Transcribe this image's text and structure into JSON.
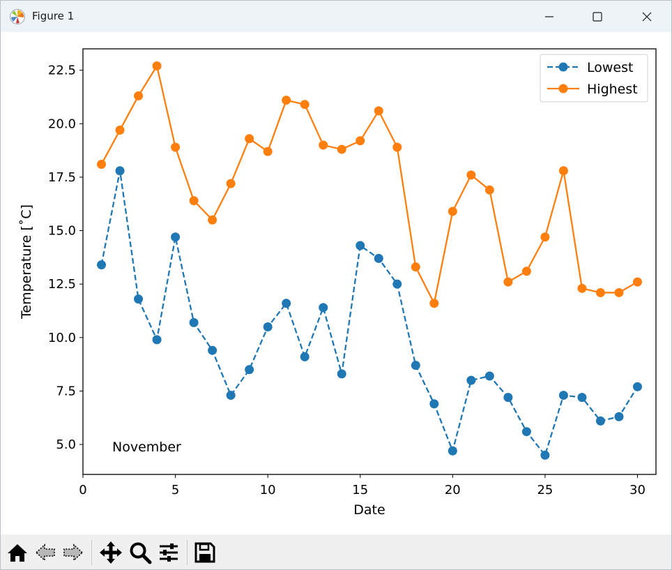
{
  "window": {
    "title": "Figure 1",
    "controls": [
      "minimize",
      "maximize",
      "close"
    ]
  },
  "toolbar": {
    "tools": [
      {
        "name": "home-icon"
      },
      {
        "name": "back-arrow-icon"
      },
      {
        "name": "forward-arrow-icon"
      },
      {
        "name": "pan-move-icon"
      },
      {
        "name": "zoom-magnifier-icon"
      },
      {
        "name": "configure-subplots-icon"
      },
      {
        "name": "save-disk-icon"
      }
    ]
  },
  "chart_data": {
    "type": "line",
    "xlabel": "Date",
    "ylabel": "Temperature [˚C]",
    "annotation": "November",
    "xlim": [
      0,
      31
    ],
    "ylim": [
      3.6,
      23.5
    ],
    "xticks": [
      0,
      5,
      10,
      15,
      20,
      25,
      30
    ],
    "yticks": [
      5.0,
      7.5,
      10.0,
      12.5,
      15.0,
      17.5,
      20.0,
      22.5
    ],
    "grid": false,
    "legend_position": "top-right",
    "x": [
      1,
      2,
      3,
      4,
      5,
      6,
      7,
      8,
      9,
      10,
      11,
      12,
      13,
      14,
      15,
      16,
      17,
      18,
      19,
      20,
      21,
      22,
      23,
      24,
      25,
      26,
      27,
      28,
      29,
      30
    ],
    "series": [
      {
        "name": "Lowest",
        "color": "#1f77b4",
        "linestyle": "dashed",
        "marker": "circle",
        "values": [
          13.4,
          17.8,
          11.8,
          9.9,
          14.7,
          10.7,
          9.4,
          7.3,
          8.5,
          10.5,
          11.6,
          9.1,
          11.4,
          8.3,
          14.3,
          13.7,
          12.5,
          8.7,
          6.9,
          4.7,
          8.0,
          8.2,
          7.2,
          5.6,
          4.5,
          7.3,
          7.2,
          6.1,
          6.3,
          7.7
        ]
      },
      {
        "name": "Highest",
        "color": "#ff7f0e",
        "linestyle": "solid",
        "marker": "circle",
        "values": [
          18.1,
          19.7,
          21.3,
          22.7,
          18.9,
          16.4,
          15.5,
          17.2,
          19.3,
          18.7,
          21.1,
          20.9,
          19.0,
          18.8,
          19.2,
          20.6,
          18.9,
          13.3,
          11.6,
          15.9,
          17.6,
          16.9,
          12.6,
          13.1,
          14.7,
          17.8,
          12.3,
          12.1,
          12.1,
          12.6
        ]
      }
    ]
  }
}
